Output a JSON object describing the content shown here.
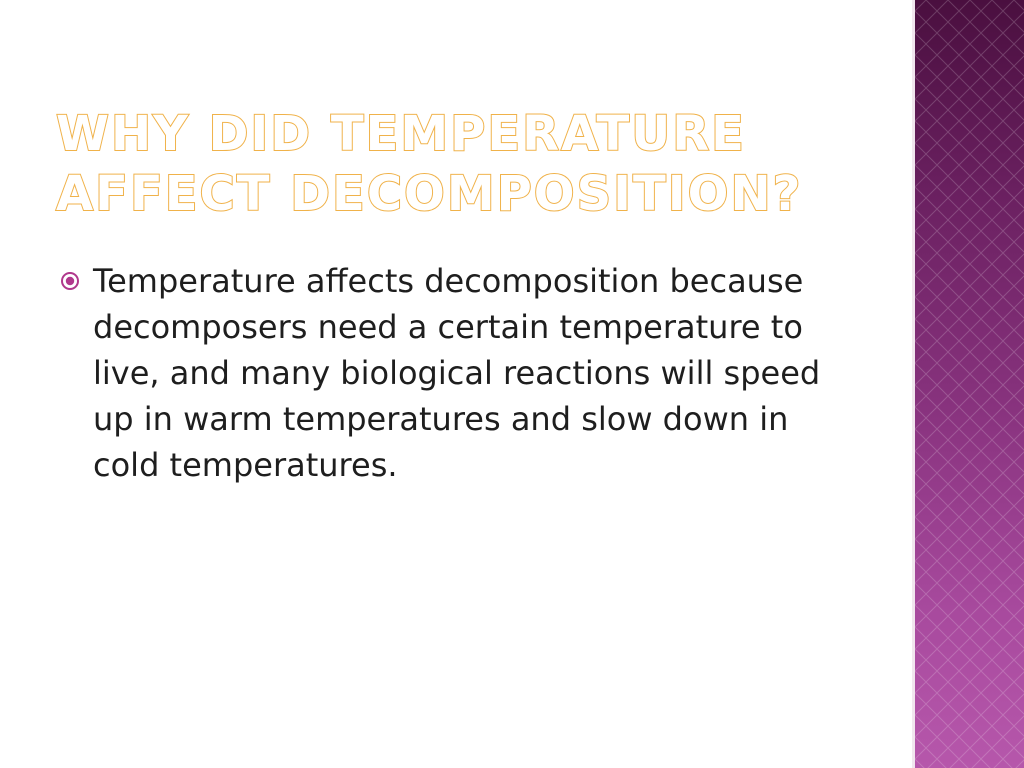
{
  "slide": {
    "title_lines": [
      "Why did temperature",
      "affect decomposition?"
    ],
    "bullets": [
      {
        "icon": "circled-dot-bullet-icon",
        "text": "Temperature affects decomposition because decomposers need a certain temperature to live, and many biological reactions will speed up in warm temperatures and slow down in cold temperatures."
      }
    ]
  },
  "colors": {
    "title_outline": "#f0b24a",
    "accent_band_top": "#4a0f3f",
    "accent_band_bottom": "#b657ab",
    "bullet_icon": "#b0388c",
    "body_text": "#1e1e1e"
  }
}
